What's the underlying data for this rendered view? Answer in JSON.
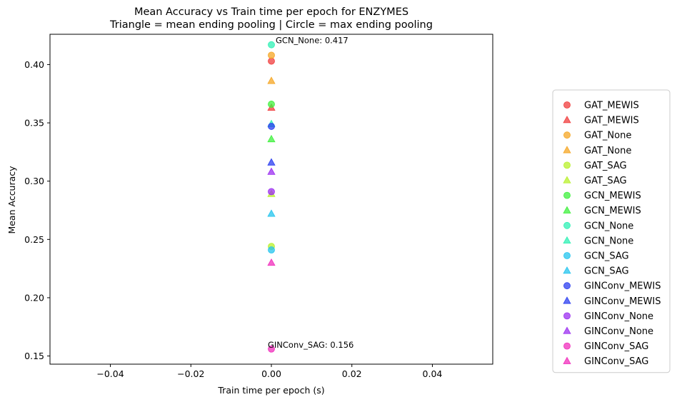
{
  "chart_data": {
    "type": "scatter",
    "title": "Mean Accuracy vs Train time per epoch for ENZYMES",
    "subtitle": "Triangle = mean ending pooling | Circle = max ending pooling",
    "xlabel": "Train time per epoch (s)",
    "ylabel": "Mean Accuracy",
    "xlim": [
      -0.055,
      0.055
    ],
    "ylim": [
      0.143,
      0.426
    ],
    "xticks": [
      -0.04,
      -0.02,
      0.0,
      0.02,
      0.04
    ],
    "xtick_labels": [
      "−0.04",
      "−0.02",
      "0.00",
      "0.02",
      "0.04"
    ],
    "yticks": [
      0.15,
      0.2,
      0.25,
      0.3,
      0.35,
      0.4
    ],
    "ytick_labels": [
      "0.15",
      "0.20",
      "0.25",
      "0.30",
      "0.35",
      "0.40"
    ],
    "grid": false,
    "legend_position": "right, outside plot",
    "series": [
      {
        "name": "GAT_MEWIS",
        "marker": "circle",
        "color": "#f03c3c",
        "x": 0.0,
        "y": 0.403
      },
      {
        "name": "GAT_MEWIS",
        "marker": "triangle",
        "color": "#f03c3c",
        "x": 0.0,
        "y": 0.363
      },
      {
        "name": "GAT_None",
        "marker": "circle",
        "color": "#f5a623",
        "x": 0.0,
        "y": 0.408
      },
      {
        "name": "GAT_None",
        "marker": "triangle",
        "color": "#f5a623",
        "x": 0.0,
        "y": 0.386
      },
      {
        "name": "GAT_SAG",
        "marker": "circle",
        "color": "#b8f02a",
        "x": 0.0,
        "y": 0.244
      },
      {
        "name": "GAT_SAG",
        "marker": "triangle",
        "color": "#b8f02a",
        "x": 0.0,
        "y": 0.289
      },
      {
        "name": "GCN_MEWIS",
        "marker": "circle",
        "color": "#3ef03c",
        "x": 0.0,
        "y": 0.366
      },
      {
        "name": "GCN_MEWIS",
        "marker": "triangle",
        "color": "#3ef03c",
        "x": 0.0,
        "y": 0.336
      },
      {
        "name": "GCN_None",
        "marker": "circle",
        "color": "#2ef0b4",
        "x": 0.0,
        "y": 0.417
      },
      {
        "name": "GCN_None",
        "marker": "triangle",
        "color": "#2ef0b4",
        "x": 0.0,
        "y": 0.349
      },
      {
        "name": "GCN_SAG",
        "marker": "circle",
        "color": "#23c4ee",
        "x": 0.0,
        "y": 0.241
      },
      {
        "name": "GCN_SAG",
        "marker": "triangle",
        "color": "#23c4ee",
        "x": 0.0,
        "y": 0.272
      },
      {
        "name": "GINConv_MEWIS",
        "marker": "circle",
        "color": "#2b3ef0",
        "x": 0.0,
        "y": 0.347
      },
      {
        "name": "GINConv_MEWIS",
        "marker": "triangle",
        "color": "#2b3ef0",
        "x": 0.0,
        "y": 0.316
      },
      {
        "name": "GINConv_None",
        "marker": "circle",
        "color": "#9b2ef0",
        "x": 0.0,
        "y": 0.291
      },
      {
        "name": "GINConv_None",
        "marker": "triangle",
        "color": "#9b2ef0",
        "x": 0.0,
        "y": 0.308
      },
      {
        "name": "GINConv_SAG",
        "marker": "circle",
        "color": "#f02ebc",
        "x": 0.0,
        "y": 0.156
      },
      {
        "name": "GINConv_SAG",
        "marker": "triangle",
        "color": "#f02ebc",
        "x": 0.0,
        "y": 0.23
      }
    ],
    "annotations": [
      {
        "text": "GCN_None: 0.417",
        "x": 0.0,
        "y": 0.417
      },
      {
        "text": "GINConv_SAG: 0.156",
        "x": 0.0,
        "y": 0.156
      }
    ]
  }
}
